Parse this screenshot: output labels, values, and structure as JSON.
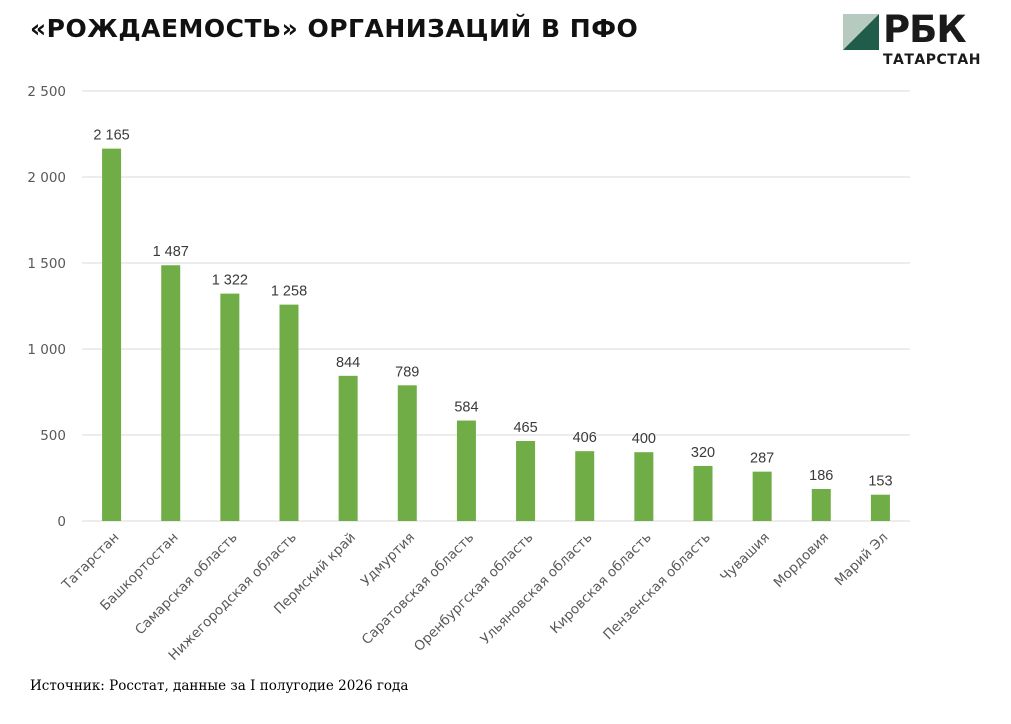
{
  "header": {
    "title": "«РОЖДАЕМОСТЬ» ОРГАНИЗАЦИЙ В ПФО"
  },
  "logo": {
    "name": "РБК",
    "subtitle": "ТАТАРСТАН",
    "colors": {
      "mark_dark": "#1f5c4a",
      "mark_light": "#9fb9ac"
    }
  },
  "source": "Источник: Росстат, данные за I полугодие 2026 года",
  "chart_data": {
    "type": "bar",
    "title": "«РОЖДАЕМОСТЬ» ОРГАНИЗАЦИЙ В ПФО",
    "xlabel": "",
    "ylabel": "",
    "ylim": [
      0,
      2500
    ],
    "yticks": [
      0,
      500,
      1000,
      1500,
      2000,
      2500
    ],
    "ytick_labels": [
      "0",
      "500",
      "1 000",
      "1 500",
      "2 000",
      "2 500"
    ],
    "grid": true,
    "bar_color": "#70ad47",
    "categories": [
      "Татарстан",
      "Башкортостан",
      "Самарская область",
      "Нижегородская область",
      "Пермский край",
      "Удмуртия",
      "Саратовская область",
      "Оренбургская область",
      "Ульяновская область",
      "Кировская область",
      "Пензенская область",
      "Чувашия",
      "Мордовия",
      "Марий Эл"
    ],
    "values": [
      2165,
      1487,
      1322,
      1258,
      844,
      789,
      584,
      465,
      406,
      400,
      320,
      287,
      186,
      153
    ],
    "value_labels": [
      "2 165",
      "1 487",
      "1 322",
      "1 258",
      "844",
      "789",
      "584",
      "465",
      "406",
      "400",
      "320",
      "287",
      "186",
      "153"
    ]
  }
}
